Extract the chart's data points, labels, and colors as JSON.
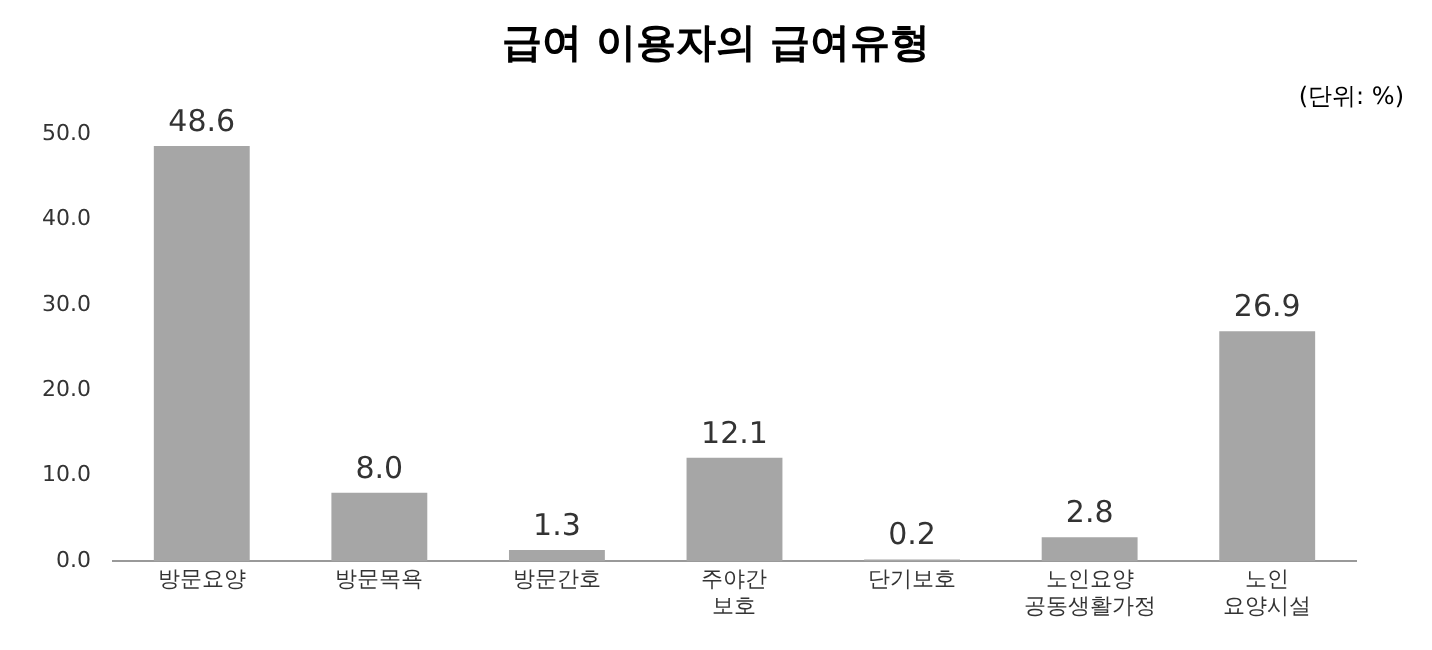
{
  "chart_data": {
    "type": "bar",
    "title": "급여 이용자의 급여유형",
    "annotations": [
      "(단위: %)"
    ],
    "categories": [
      "방문요양",
      "방문목욕",
      "방문간호",
      "주야간\n보호",
      "단기보호",
      "노인요양\n공동생활가정",
      "노인\n요양시설"
    ],
    "values": [
      48.6,
      8.0,
      1.3,
      12.1,
      0.2,
      2.8,
      26.9
    ],
    "value_labels": [
      "48.6",
      "8.0",
      "1.3",
      "12.1",
      "0.2",
      "2.8",
      "26.9"
    ],
    "color": "#a6a6a6",
    "ylim": [
      0,
      50
    ],
    "yticks": [
      {
        "value": 0,
        "label": "0.0"
      },
      {
        "value": 10,
        "label": "10.0"
      },
      {
        "value": 20,
        "label": "20.0"
      },
      {
        "value": 30,
        "label": "30.0"
      },
      {
        "value": 40,
        "label": "40.0"
      },
      {
        "value": 50,
        "label": "50.0"
      }
    ],
    "grid": false,
    "legend": false
  }
}
